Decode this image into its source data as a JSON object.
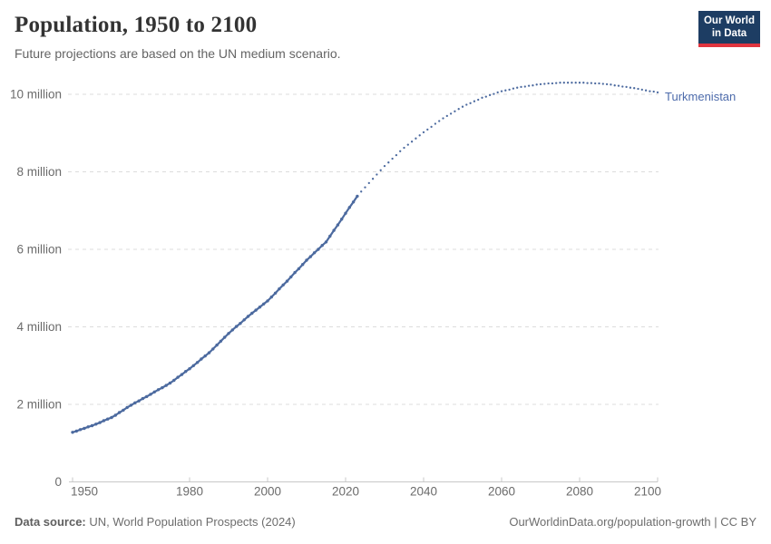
{
  "header": {
    "title": "Population, 1950 to 2100",
    "subtitle": "Future projections are based on the UN medium scenario.",
    "logo": {
      "line1": "Our World",
      "line2": "in Data",
      "bg": "#1d3d63",
      "accent": "#e0353f"
    }
  },
  "chart_data": {
    "type": "line",
    "title": "Population, 1950 to 2100",
    "entity_label": "Turkmenistan",
    "unit": "people (millions)",
    "xlabel": "",
    "ylabel": "",
    "xlim": [
      1950,
      2100
    ],
    "ylim": [
      0,
      10.6
    ],
    "grid": true,
    "legend_position": "end-of-line-label",
    "x_ticks": [
      1950,
      1980,
      2000,
      2020,
      2040,
      2060,
      2080,
      2100
    ],
    "y_ticks": [
      {
        "v": 0,
        "label": "0"
      },
      {
        "v": 2,
        "label": "2 million"
      },
      {
        "v": 4,
        "label": "4 million"
      },
      {
        "v": 6,
        "label": "6 million"
      },
      {
        "v": 8,
        "label": "8 million"
      },
      {
        "v": 10,
        "label": "10 million"
      }
    ],
    "colors": {
      "line": "#4c6a9f",
      "entity_label": "#4d6bab",
      "grid": "#dcdcdc",
      "axis": "#c8c8c8",
      "tick_text": "#6b6b6b"
    },
    "series": [
      {
        "name": "Turkmenistan — historical estimates",
        "style": "solid_with_markers",
        "points": [
          [
            1950,
            1.28
          ],
          [
            1951,
            1.31
          ],
          [
            1952,
            1.35
          ],
          [
            1953,
            1.38
          ],
          [
            1954,
            1.42
          ],
          [
            1955,
            1.45
          ],
          [
            1956,
            1.49
          ],
          [
            1957,
            1.53
          ],
          [
            1958,
            1.58
          ],
          [
            1959,
            1.62
          ],
          [
            1960,
            1.66
          ],
          [
            1961,
            1.72
          ],
          [
            1962,
            1.79
          ],
          [
            1963,
            1.85
          ],
          [
            1964,
            1.92
          ],
          [
            1965,
            1.98
          ],
          [
            1966,
            2.04
          ],
          [
            1967,
            2.09
          ],
          [
            1968,
            2.15
          ],
          [
            1969,
            2.2
          ],
          [
            1970,
            2.26
          ],
          [
            1971,
            2.32
          ],
          [
            1972,
            2.38
          ],
          [
            1973,
            2.43
          ],
          [
            1974,
            2.49
          ],
          [
            1975,
            2.55
          ],
          [
            1976,
            2.62
          ],
          [
            1977,
            2.7
          ],
          [
            1978,
            2.77
          ],
          [
            1979,
            2.85
          ],
          [
            1980,
            2.92
          ],
          [
            1981,
            3.0
          ],
          [
            1982,
            3.08
          ],
          [
            1983,
            3.17
          ],
          [
            1984,
            3.25
          ],
          [
            1985,
            3.33
          ],
          [
            1986,
            3.43
          ],
          [
            1987,
            3.53
          ],
          [
            1988,
            3.63
          ],
          [
            1989,
            3.73
          ],
          [
            1990,
            3.83
          ],
          [
            1991,
            3.92
          ],
          [
            1992,
            4.01
          ],
          [
            1993,
            4.09
          ],
          [
            1994,
            4.18
          ],
          [
            1995,
            4.27
          ],
          [
            1996,
            4.35
          ],
          [
            1997,
            4.43
          ],
          [
            1998,
            4.51
          ],
          [
            1999,
            4.59
          ],
          [
            2000,
            4.67
          ],
          [
            2001,
            4.77
          ],
          [
            2002,
            4.87
          ],
          [
            2003,
            4.98
          ],
          [
            2004,
            5.08
          ],
          [
            2005,
            5.18
          ],
          [
            2006,
            5.29
          ],
          [
            2007,
            5.4
          ],
          [
            2008,
            5.5
          ],
          [
            2009,
            5.61
          ],
          [
            2010,
            5.72
          ],
          [
            2011,
            5.81
          ],
          [
            2012,
            5.91
          ],
          [
            2013,
            6.0
          ],
          [
            2014,
            6.1
          ],
          [
            2015,
            6.19
          ],
          [
            2016,
            6.34
          ],
          [
            2017,
            6.49
          ],
          [
            2018,
            6.63
          ],
          [
            2019,
            6.78
          ],
          [
            2020,
            6.93
          ],
          [
            2021,
            7.08
          ],
          [
            2022,
            7.22
          ],
          [
            2023,
            7.37
          ]
        ]
      },
      {
        "name": "Turkmenistan — UN medium projection",
        "style": "dotted",
        "points": [
          [
            2023,
            7.37
          ],
          [
            2024,
            7.49
          ],
          [
            2025,
            7.6
          ],
          [
            2026,
            7.71
          ],
          [
            2027,
            7.82
          ],
          [
            2028,
            7.93
          ],
          [
            2029,
            8.04
          ],
          [
            2030,
            8.15
          ],
          [
            2031,
            8.24
          ],
          [
            2032,
            8.34
          ],
          [
            2033,
            8.43
          ],
          [
            2034,
            8.53
          ],
          [
            2035,
            8.62
          ],
          [
            2036,
            8.7
          ],
          [
            2037,
            8.78
          ],
          [
            2038,
            8.86
          ],
          [
            2039,
            8.94
          ],
          [
            2040,
            9.02
          ],
          [
            2041,
            9.09
          ],
          [
            2042,
            9.16
          ],
          [
            2043,
            9.24
          ],
          [
            2044,
            9.31
          ],
          [
            2045,
            9.38
          ],
          [
            2046,
            9.44
          ],
          [
            2047,
            9.5
          ],
          [
            2048,
            9.56
          ],
          [
            2049,
            9.62
          ],
          [
            2050,
            9.68
          ],
          [
            2051,
            9.73
          ],
          [
            2052,
            9.77
          ],
          [
            2053,
            9.82
          ],
          [
            2054,
            9.86
          ],
          [
            2055,
            9.91
          ],
          [
            2056,
            9.94
          ],
          [
            2057,
            9.98
          ],
          [
            2058,
            10.01
          ],
          [
            2059,
            10.05
          ],
          [
            2060,
            10.08
          ],
          [
            2061,
            10.1
          ],
          [
            2062,
            10.12
          ],
          [
            2063,
            10.15
          ],
          [
            2064,
            10.17
          ],
          [
            2065,
            10.19
          ],
          [
            2066,
            10.2
          ],
          [
            2067,
            10.22
          ],
          [
            2068,
            10.23
          ],
          [
            2069,
            10.25
          ],
          [
            2070,
            10.26
          ],
          [
            2071,
            10.27
          ],
          [
            2072,
            10.28
          ],
          [
            2073,
            10.28
          ],
          [
            2074,
            10.29
          ],
          [
            2075,
            10.3
          ],
          [
            2076,
            10.3
          ],
          [
            2077,
            10.3
          ],
          [
            2078,
            10.3
          ],
          [
            2079,
            10.3
          ],
          [
            2080,
            10.3
          ],
          [
            2081,
            10.3
          ],
          [
            2082,
            10.29
          ],
          [
            2083,
            10.29
          ],
          [
            2084,
            10.28
          ],
          [
            2085,
            10.28
          ],
          [
            2086,
            10.27
          ],
          [
            2087,
            10.26
          ],
          [
            2088,
            10.25
          ],
          [
            2089,
            10.23
          ],
          [
            2090,
            10.22
          ],
          [
            2091,
            10.2
          ],
          [
            2092,
            10.19
          ],
          [
            2093,
            10.17
          ],
          [
            2094,
            10.16
          ],
          [
            2095,
            10.14
          ],
          [
            2096,
            10.12
          ],
          [
            2097,
            10.1
          ],
          [
            2098,
            10.08
          ],
          [
            2099,
            10.07
          ],
          [
            2100,
            10.05
          ]
        ]
      }
    ]
  },
  "footer": {
    "data_source_label": "Data source:",
    "data_source_text": " UN, World Population Prospects (2024)",
    "link_text": "OurWorldinData.org/population-growth | CC BY"
  }
}
